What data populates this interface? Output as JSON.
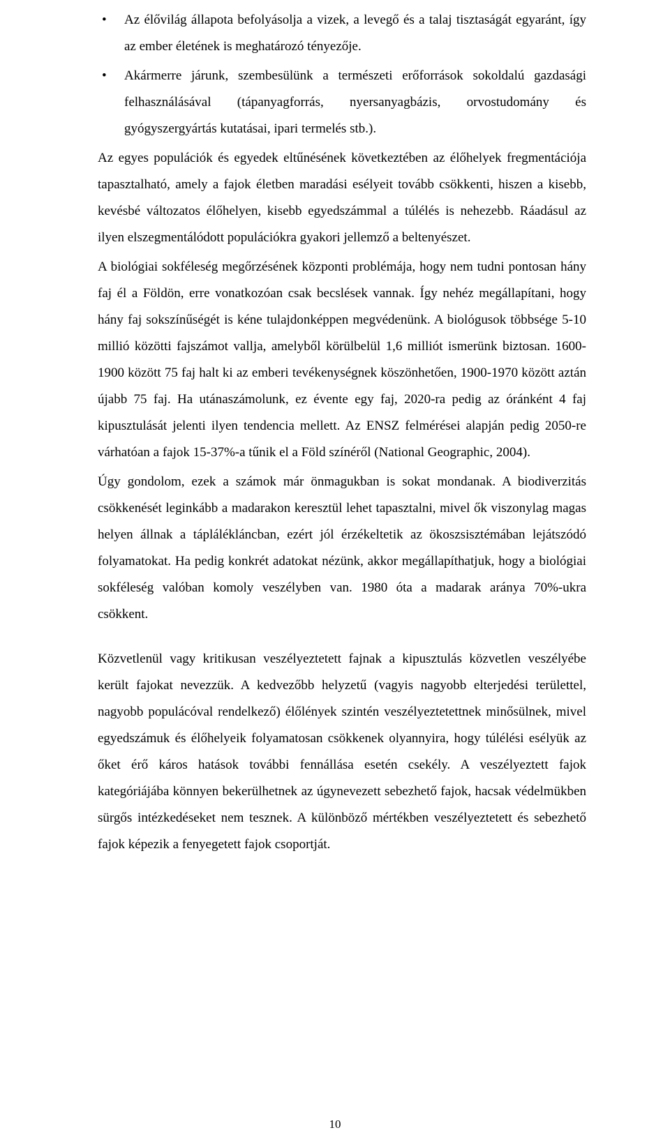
{
  "bullets": [
    "Az élővilág állapota befolyásolja a vizek, a levegő és a talaj tisztaságát egyaránt, így az ember életének is meghatározó tényezője.",
    "Akármerre járunk, szembesülünk a természeti erőforrások sokoldalú gazdasági felhasználásával (tápanyagforrás, nyersanyagbázis, orvostudomány és gyógyszergyártás kutatásai, ipari termelés stb.)."
  ],
  "paragraphs_after_bullets": [
    "Az egyes populációk és egyedek eltűnésének következtében az élőhelyek fregmentációja tapasztalható, amely a fajok életben maradási esélyeit tovább csökkenti, hiszen a kisebb, kevésbé változatos élőhelyen, kisebb egyedszámmal a túlélés is nehezebb. Ráadásul az ilyen elszegmentálódott populációkra gyakori jellemző a beltenyészet.",
    "A biológiai sokféleség megőrzésének központi problémája, hogy nem tudni pontosan hány faj él a Földön, erre vonatkozóan csak becslések vannak. Így nehéz megállapítani, hogy hány faj sokszínűségét is kéne tulajdonképpen megvédenünk. A biológusok többsége 5-10 millió közötti fajszámot vallja, amelyből körülbelül 1,6 milliót ismerünk biztosan. 1600-1900 között 75 faj halt ki az emberi tevékenységnek köszönhetően, 1900-1970 között aztán újabb 75 faj. Ha utánaszámolunk, ez évente egy faj, 2020-ra pedig az óránként 4 faj kipusztulását jelenti ilyen tendencia mellett. Az ENSZ felmérései alapján pedig 2050-re várhatóan a fajok 15-37%-a tűnik el a Föld színéről (National Geographic, 2004).",
    "Úgy gondolom, ezek a számok már önmagukban is sokat mondanak. A biodiverzitás csökkenését leginkább a madarakon keresztül lehet tapasztalni, mivel ők viszonylag magas helyen állnak a táplálékláncban, ezért jól érzékeltetik az ökoszsisztémában lejátszódó folyamatokat. Ha pedig konkrét adatokat nézünk, akkor megállapíthatjuk, hogy a biológiai sokféleség valóban komoly veszélyben van. 1980 óta a madarak aránya 70%-ukra csökkent."
  ],
  "paragraphs_after_gap": [
    "Közvetlenül vagy kritikusan veszélyeztetett fajnak a kipusztulás közvetlen veszélyébe került fajokat nevezzük. A kedvezőbb helyzetű (vagyis nagyobb elterjedési területtel, nagyobb populácóval rendelkező) élőlények szintén veszélyeztetettnek minősülnek, mivel egyedszámuk és élőhelyeik folyamatosan csökkenek olyannyira, hogy túlélési esélyük az őket érő káros hatások további fennállása esetén csekély. A veszélyeztett fajok kategóriájába könnyen bekerülhetnek az úgynevezett sebezhető fajok, hacsak védelmükben sürgős intézkedéseket nem tesznek. A különböző mértékben veszélyeztetett és sebezhető fajok képezik a fenyegetett fajok csoportját."
  ],
  "page_number": "10"
}
